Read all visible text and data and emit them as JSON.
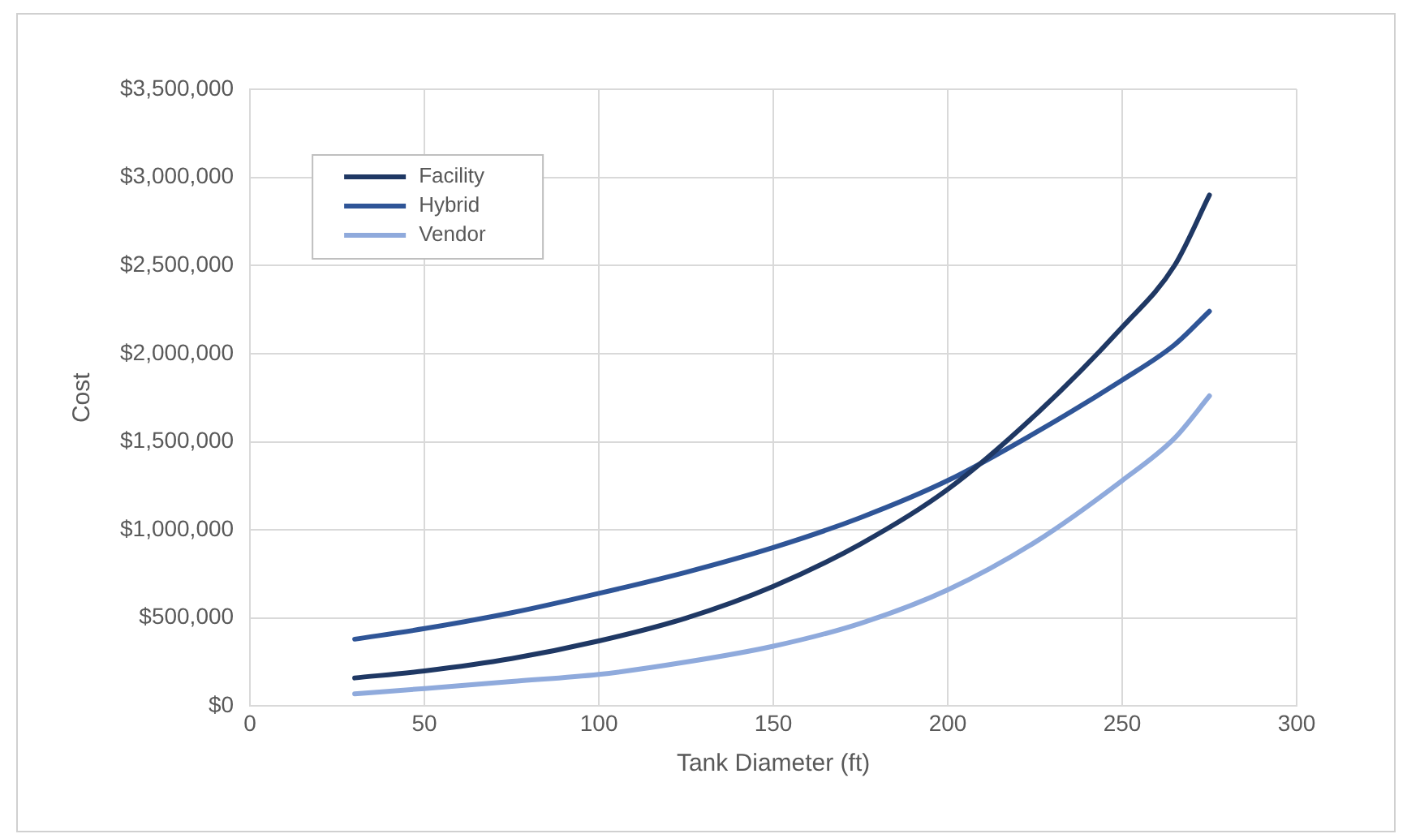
{
  "chart_data": {
    "type": "line",
    "xlabel": "Tank Diameter (ft)",
    "ylabel": "Cost",
    "x": [
      30,
      50,
      75,
      100,
      125,
      150,
      175,
      200,
      225,
      250,
      265,
      275
    ],
    "series": [
      {
        "name": "Facility",
        "color": "#1f3864",
        "values": [
          160000,
          200000,
          270000,
          370000,
          500000,
          680000,
          920000,
          1230000,
          1650000,
          2150000,
          2500000,
          2900000
        ]
      },
      {
        "name": "Hybrid",
        "color": "#2f5597",
        "values": [
          380000,
          440000,
          530000,
          640000,
          760000,
          900000,
          1070000,
          1280000,
          1550000,
          1850000,
          2050000,
          2240000
        ]
      },
      {
        "name": "Vendor",
        "color": "#8faadc",
        "values": [
          70000,
          100000,
          140000,
          180000,
          250000,
          340000,
          470000,
          660000,
          930000,
          1280000,
          1520000,
          1760000
        ]
      }
    ],
    "xlim": [
      0,
      300
    ],
    "xticks": [
      0,
      50,
      100,
      150,
      200,
      250,
      300
    ],
    "ylim": [
      0,
      3500000
    ],
    "yticks": [
      {
        "value": 0,
        "label": "$0"
      },
      {
        "value": 500000,
        "label": "$500,000"
      },
      {
        "value": 1000000,
        "label": "$1,000,000"
      },
      {
        "value": 1500000,
        "label": "$1,500,000"
      },
      {
        "value": 2000000,
        "label": "$2,000,000"
      },
      {
        "value": 2500000,
        "label": "$2,500,000"
      },
      {
        "value": 3000000,
        "label": "$3,000,000"
      },
      {
        "value": 3500000,
        "label": "$3,500,000"
      }
    ],
    "grid": true,
    "legend": "top left",
    "marker": "none",
    "line_style": "solid"
  }
}
